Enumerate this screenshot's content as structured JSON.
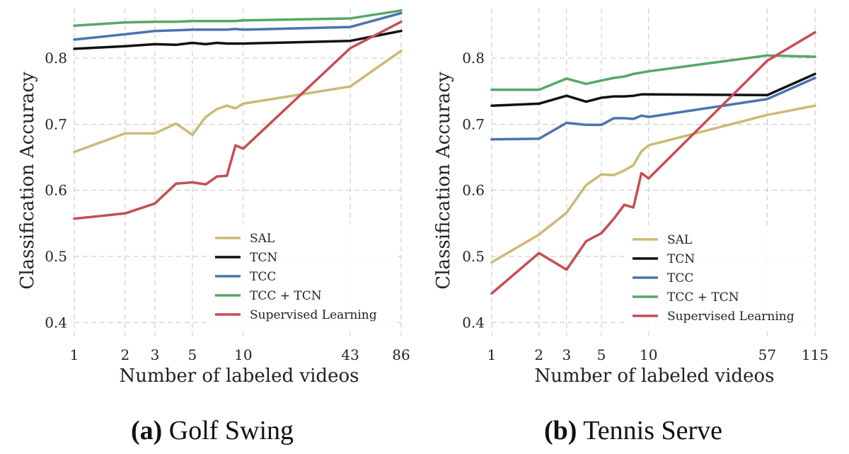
{
  "chart_data": [
    {
      "type": "line",
      "caption_prefix": "(a)",
      "caption_title": "Golf Swing",
      "xlabel": "Number of labeled videos",
      "ylabel": "Classification Accuracy",
      "xscale": "log",
      "xlim": [
        1,
        86
      ],
      "ylim": [
        0.38,
        0.875
      ],
      "xticks": [
        1,
        2,
        3,
        5,
        10,
        43,
        86
      ],
      "xtick_labels": [
        "1",
        "2",
        "3",
        "5",
        "10",
        "43",
        "86"
      ],
      "yticks": [
        0.4,
        0.5,
        0.6,
        0.7,
        0.8
      ],
      "ytick_labels": [
        "0.4",
        "0.5",
        "0.6",
        "0.7",
        "0.8"
      ],
      "legend_position": "lower-right",
      "series": [
        {
          "name": "SAL",
          "color": "#ccb974",
          "x": [
            1,
            2,
            3,
            4,
            5,
            6,
            7,
            8,
            9,
            10,
            43,
            86
          ],
          "y": [
            0.658,
            0.686,
            0.686,
            0.701,
            0.684,
            0.711,
            0.723,
            0.728,
            0.724,
            0.731,
            0.757,
            0.811
          ]
        },
        {
          "name": "TCN",
          "color": "#111111",
          "x": [
            1,
            2,
            3,
            4,
            5,
            6,
            7,
            8,
            9,
            10,
            43,
            86
          ],
          "y": [
            0.814,
            0.818,
            0.821,
            0.82,
            0.823,
            0.821,
            0.823,
            0.822,
            0.822,
            0.822,
            0.826,
            0.841
          ]
        },
        {
          "name": "TCC",
          "color": "#4c72b0",
          "x": [
            1,
            2,
            3,
            4,
            5,
            6,
            7,
            8,
            9,
            10,
            43,
            86
          ],
          "y": [
            0.828,
            0.836,
            0.841,
            0.842,
            0.843,
            0.843,
            0.843,
            0.843,
            0.844,
            0.843,
            0.847,
            0.868
          ]
        },
        {
          "name": "TCC + TCN",
          "color": "#55a868",
          "x": [
            1,
            2,
            3,
            4,
            5,
            6,
            7,
            8,
            9,
            10,
            43,
            86
          ],
          "y": [
            0.849,
            0.854,
            0.855,
            0.855,
            0.856,
            0.856,
            0.856,
            0.856,
            0.856,
            0.857,
            0.86,
            0.872
          ]
        },
        {
          "name": "Supervised Learning",
          "color": "#c44e52",
          "x": [
            1,
            2,
            3,
            4,
            5,
            6,
            7,
            8,
            9,
            10,
            43,
            86
          ],
          "y": [
            0.557,
            0.565,
            0.58,
            0.61,
            0.612,
            0.609,
            0.621,
            0.622,
            0.668,
            0.663,
            0.815,
            0.855
          ]
        }
      ]
    },
    {
      "type": "line",
      "caption_prefix": "(b)",
      "caption_title": "Tennis Serve",
      "xlabel": "Number of labeled videos",
      "ylabel": "Classification Accuracy",
      "xscale": "log",
      "xlim": [
        1,
        115
      ],
      "ylim": [
        0.38,
        0.875
      ],
      "xticks": [
        1,
        2,
        3,
        5,
        10,
        57,
        115
      ],
      "xtick_labels": [
        "1",
        "2",
        "3",
        "5",
        "10",
        "57",
        "115"
      ],
      "yticks": [
        0.4,
        0.5,
        0.6,
        0.7,
        0.8
      ],
      "ytick_labels": [
        "0.4",
        "0.5",
        "0.6",
        "0.7",
        "0.8"
      ],
      "legend_position": "lower-right",
      "series": [
        {
          "name": "SAL",
          "color": "#ccb974",
          "x": [
            1,
            2,
            3,
            4,
            5,
            6,
            7,
            8,
            9,
            10,
            57,
            115
          ],
          "y": [
            0.491,
            0.533,
            0.566,
            0.608,
            0.624,
            0.623,
            0.63,
            0.638,
            0.659,
            0.668,
            0.714,
            0.728
          ]
        },
        {
          "name": "TCN",
          "color": "#111111",
          "x": [
            1,
            2,
            3,
            4,
            5,
            6,
            7,
            8,
            9,
            10,
            57,
            115
          ],
          "y": [
            0.728,
            0.731,
            0.743,
            0.734,
            0.74,
            0.742,
            0.742,
            0.743,
            0.745,
            0.745,
            0.744,
            0.776
          ]
        },
        {
          "name": "TCC",
          "color": "#4c72b0",
          "x": [
            1,
            2,
            3,
            4,
            5,
            6,
            7,
            8,
            9,
            10,
            57,
            115
          ],
          "y": [
            0.677,
            0.678,
            0.702,
            0.699,
            0.699,
            0.709,
            0.709,
            0.708,
            0.713,
            0.711,
            0.738,
            0.77
          ]
        },
        {
          "name": "TCC + TCN",
          "color": "#55a868",
          "x": [
            1,
            2,
            3,
            4,
            5,
            6,
            7,
            8,
            9,
            10,
            57,
            115
          ],
          "y": [
            0.752,
            0.752,
            0.769,
            0.761,
            0.766,
            0.77,
            0.772,
            0.776,
            0.778,
            0.78,
            0.804,
            0.802
          ]
        },
        {
          "name": "Supervised Learning",
          "color": "#c44e52",
          "x": [
            1,
            2,
            3,
            4,
            5,
            6,
            7,
            8,
            9,
            10,
            57,
            115
          ],
          "y": [
            0.444,
            0.505,
            0.48,
            0.523,
            0.535,
            0.557,
            0.578,
            0.574,
            0.626,
            0.618,
            0.796,
            0.839
          ]
        }
      ]
    }
  ]
}
